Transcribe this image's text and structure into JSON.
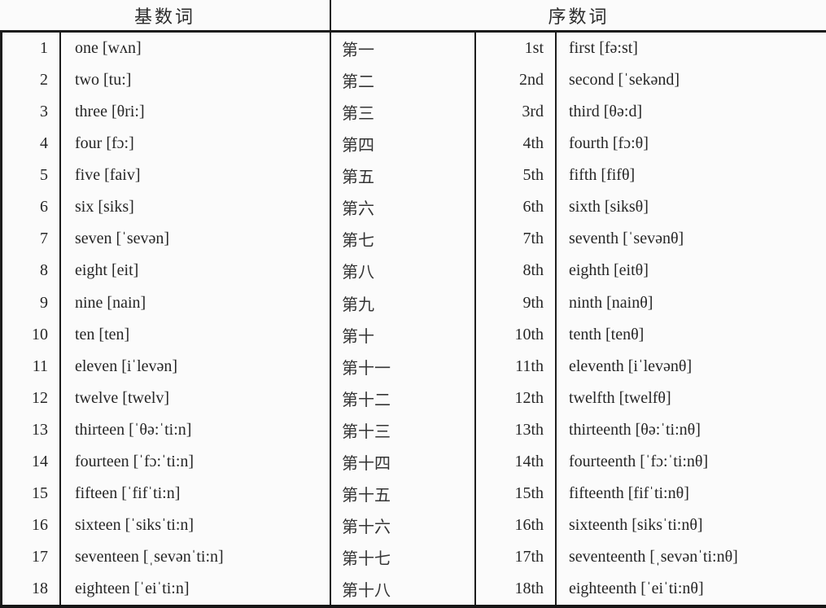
{
  "colors": {
    "background": "#fbfbfb",
    "text": "#262626",
    "grid_line": "#1c1c1c"
  },
  "header": {
    "cardinal_label": "基数词",
    "ordinal_label": "序数词"
  },
  "rows": [
    {
      "num": "1",
      "cardinal": "one [wʌn]",
      "chinese": "第一",
      "ord": "1st",
      "ordinal": "first [fə:st]"
    },
    {
      "num": "2",
      "cardinal": "two [tu:]",
      "chinese": "第二",
      "ord": "2nd",
      "ordinal": "second [ˈsekənd]"
    },
    {
      "num": "3",
      "cardinal": "three [θri:]",
      "chinese": "第三",
      "ord": "3rd",
      "ordinal": "third [θə:d]"
    },
    {
      "num": "4",
      "cardinal": "four [fɔ:]",
      "chinese": "第四",
      "ord": "4th",
      "ordinal": "fourth [fɔ:θ]"
    },
    {
      "num": "5",
      "cardinal": "five [faiv]",
      "chinese": "第五",
      "ord": "5th",
      "ordinal": "fifth [fifθ]"
    },
    {
      "num": "6",
      "cardinal": "six [siks]",
      "chinese": "第六",
      "ord": "6th",
      "ordinal": "sixth [siksθ]"
    },
    {
      "num": "7",
      "cardinal": "seven [ˈsevən]",
      "chinese": "第七",
      "ord": "7th",
      "ordinal": "seventh [ˈsevənθ]"
    },
    {
      "num": "8",
      "cardinal": "eight [eit]",
      "chinese": "第八",
      "ord": "8th",
      "ordinal": "eighth [eitθ]"
    },
    {
      "num": "9",
      "cardinal": "nine [nain]",
      "chinese": "第九",
      "ord": "9th",
      "ordinal": "ninth [nainθ]"
    },
    {
      "num": "10",
      "cardinal": "ten [ten]",
      "chinese": "第十",
      "ord": "10th",
      "ordinal": "tenth [tenθ]"
    },
    {
      "num": "11",
      "cardinal": "eleven [iˈlevən]",
      "chinese": "第十一",
      "ord": "11th",
      "ordinal": "eleventh [iˈlevənθ]"
    },
    {
      "num": "12",
      "cardinal": "twelve [twelv]",
      "chinese": "第十二",
      "ord": "12th",
      "ordinal": "twelfth [twelfθ]"
    },
    {
      "num": "13",
      "cardinal": "thirteen [ˈθə:ˈti:n]",
      "chinese": "第十三",
      "ord": "13th",
      "ordinal": "thirteenth [θə:ˈti:nθ]"
    },
    {
      "num": "14",
      "cardinal": "fourteen [ˈfɔ:ˈti:n]",
      "chinese": "第十四",
      "ord": "14th",
      "ordinal": "fourteenth [ˈfɔ:ˈti:nθ]"
    },
    {
      "num": "15",
      "cardinal": "fifteen [ˈfifˈti:n]",
      "chinese": "第十五",
      "ord": "15th",
      "ordinal": "fifteenth [fifˈti:nθ]"
    },
    {
      "num": "16",
      "cardinal": "sixteen [ˈsiksˈti:n]",
      "chinese": "第十六",
      "ord": "16th",
      "ordinal": "sixteenth [siksˈti:nθ]"
    },
    {
      "num": "17",
      "cardinal": "seventeen [ˌsevənˈti:n]",
      "chinese": "第十七",
      "ord": "17th",
      "ordinal": "seventeenth [ˌsevənˈti:nθ]"
    },
    {
      "num": "18",
      "cardinal": "eighteen [ˈeiˈti:n]",
      "chinese": "第十八",
      "ord": "18th",
      "ordinal": "eighteenth [ˈeiˈti:nθ]"
    }
  ]
}
